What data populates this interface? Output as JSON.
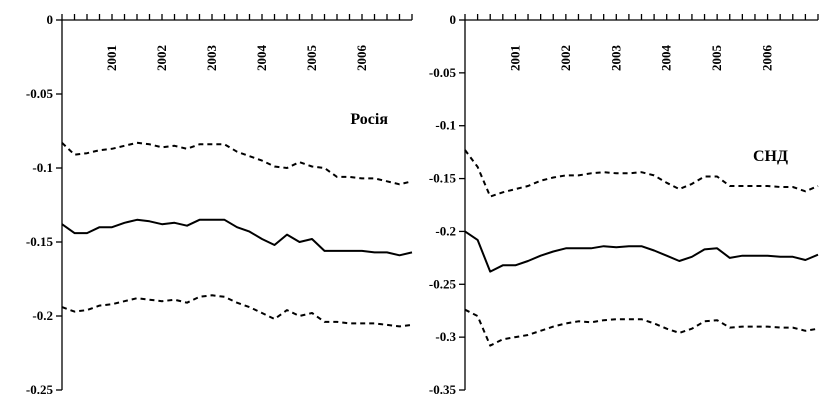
{
  "chart_data": [
    {
      "type": "line",
      "title": "Росія",
      "ylim": [
        -0.25,
        0
      ],
      "yticks": [
        0,
        -0.05,
        -0.1,
        -0.15,
        -0.2,
        -0.25
      ],
      "ytick_labels": [
        "0",
        "-0.05",
        "-0.1",
        "-0.15",
        "-0.2",
        "-0.25"
      ],
      "xlim": [
        2000.0,
        2007.0
      ],
      "year_labels": [
        "2001",
        "2002",
        "2003",
        "2004",
        "2005",
        "2006"
      ],
      "year_positions": [
        2001,
        2002,
        2003,
        2004,
        2005,
        2006
      ],
      "colors": {
        "line": "#000000"
      },
      "series": [
        {
          "style": "dashed",
          "x": [
            2000.0,
            2000.25,
            2000.5,
            2000.75,
            2001.0,
            2001.25,
            2001.5,
            2001.75,
            2002.0,
            2002.25,
            2002.5,
            2002.75,
            2003.0,
            2003.25,
            2003.5,
            2003.75,
            2004.0,
            2004.25,
            2004.5,
            2004.75,
            2005.0,
            2005.25,
            2005.5,
            2005.75,
            2006.0,
            2006.25,
            2006.5,
            2006.75,
            2007.0
          ],
          "y": [
            -0.083,
            -0.091,
            -0.09,
            -0.088,
            -0.087,
            -0.085,
            -0.083,
            -0.084,
            -0.086,
            -0.085,
            -0.087,
            -0.084,
            -0.084,
            -0.084,
            -0.089,
            -0.092,
            -0.095,
            -0.099,
            -0.1,
            -0.096,
            -0.099,
            -0.1,
            -0.106,
            -0.106,
            -0.107,
            -0.107,
            -0.109,
            -0.111,
            -0.109
          ]
        },
        {
          "style": "solid",
          "x": [
            2000.0,
            2000.25,
            2000.5,
            2000.75,
            2001.0,
            2001.25,
            2001.5,
            2001.75,
            2002.0,
            2002.25,
            2002.5,
            2002.75,
            2003.0,
            2003.25,
            2003.5,
            2003.75,
            2004.0,
            2004.25,
            2004.5,
            2004.75,
            2005.0,
            2005.25,
            2005.5,
            2005.75,
            2006.0,
            2006.25,
            2006.5,
            2006.75,
            2007.0
          ],
          "y": [
            -0.138,
            -0.144,
            -0.144,
            -0.14,
            -0.14,
            -0.137,
            -0.135,
            -0.136,
            -0.138,
            -0.137,
            -0.139,
            -0.135,
            -0.135,
            -0.135,
            -0.14,
            -0.143,
            -0.148,
            -0.152,
            -0.145,
            -0.15,
            -0.148,
            -0.156,
            -0.156,
            -0.156,
            -0.156,
            -0.157,
            -0.157,
            -0.159,
            -0.157
          ]
        },
        {
          "style": "dashed",
          "x": [
            2000.0,
            2000.25,
            2000.5,
            2000.75,
            2001.0,
            2001.25,
            2001.5,
            2001.75,
            2002.0,
            2002.25,
            2002.5,
            2002.75,
            2003.0,
            2003.25,
            2003.5,
            2003.75,
            2004.0,
            2004.25,
            2004.5,
            2004.75,
            2005.0,
            2005.25,
            2005.5,
            2005.75,
            2006.0,
            2006.25,
            2006.5,
            2006.75,
            2007.0
          ],
          "y": [
            -0.194,
            -0.197,
            -0.196,
            -0.193,
            -0.192,
            -0.19,
            -0.188,
            -0.189,
            -0.19,
            -0.189,
            -0.191,
            -0.187,
            -0.186,
            -0.187,
            -0.191,
            -0.194,
            -0.198,
            -0.202,
            -0.196,
            -0.2,
            -0.198,
            -0.204,
            -0.204,
            -0.205,
            -0.205,
            -0.205,
            -0.206,
            -0.207,
            -0.206
          ]
        }
      ]
    },
    {
      "type": "line",
      "title": "СНД",
      "ylim": [
        -0.35,
        0
      ],
      "yticks": [
        0,
        -0.05,
        -0.1,
        -0.15,
        -0.2,
        -0.25,
        -0.3,
        -0.35
      ],
      "ytick_labels": [
        "0",
        "-0.05",
        "-0.1",
        "-0.15",
        "-0.2",
        "-0.25",
        "-0.3",
        "-0.35"
      ],
      "xlim": [
        2000.0,
        2007.0
      ],
      "year_labels": [
        "2001",
        "2002",
        "2003",
        "2004",
        "2005",
        "2006"
      ],
      "year_positions": [
        2001,
        2002,
        2003,
        2004,
        2005,
        2006
      ],
      "colors": {
        "line": "#000000"
      },
      "series": [
        {
          "style": "dashed",
          "x": [
            2000.0,
            2000.25,
            2000.5,
            2000.75,
            2001.0,
            2001.25,
            2001.5,
            2001.75,
            2002.0,
            2002.25,
            2002.5,
            2002.75,
            2003.0,
            2003.25,
            2003.5,
            2003.75,
            2004.0,
            2004.25,
            2004.5,
            2004.75,
            2005.0,
            2005.25,
            2005.5,
            2005.75,
            2006.0,
            2006.25,
            2006.5,
            2006.75,
            2007.0
          ],
          "y": [
            -0.123,
            -0.139,
            -0.167,
            -0.163,
            -0.16,
            -0.157,
            -0.152,
            -0.149,
            -0.147,
            -0.147,
            -0.145,
            -0.144,
            -0.145,
            -0.145,
            -0.144,
            -0.147,
            -0.154,
            -0.16,
            -0.155,
            -0.148,
            -0.148,
            -0.157,
            -0.157,
            -0.157,
            -0.157,
            -0.158,
            -0.158,
            -0.162,
            -0.157
          ]
        },
        {
          "style": "solid",
          "x": [
            2000.0,
            2000.25,
            2000.5,
            2000.75,
            2001.0,
            2001.25,
            2001.5,
            2001.75,
            2002.0,
            2002.25,
            2002.5,
            2002.75,
            2003.0,
            2003.25,
            2003.5,
            2003.75,
            2004.0,
            2004.25,
            2004.5,
            2004.75,
            2005.0,
            2005.25,
            2005.5,
            2005.75,
            2006.0,
            2006.25,
            2006.5,
            2006.75,
            2007.0
          ],
          "y": [
            -0.2,
            -0.208,
            -0.238,
            -0.232,
            -0.232,
            -0.228,
            -0.223,
            -0.219,
            -0.216,
            -0.216,
            -0.216,
            -0.214,
            -0.215,
            -0.214,
            -0.214,
            -0.218,
            -0.223,
            -0.228,
            -0.224,
            -0.217,
            -0.216,
            -0.225,
            -0.223,
            -0.223,
            -0.223,
            -0.224,
            -0.224,
            -0.227,
            -0.222
          ]
        },
        {
          "style": "dashed",
          "x": [
            2000.0,
            2000.25,
            2000.5,
            2000.75,
            2001.0,
            2001.25,
            2001.5,
            2001.75,
            2002.0,
            2002.25,
            2002.5,
            2002.75,
            2003.0,
            2003.25,
            2003.5,
            2003.75,
            2004.0,
            2004.25,
            2004.5,
            2004.75,
            2005.0,
            2005.25,
            2005.5,
            2005.75,
            2006.0,
            2006.25,
            2006.5,
            2006.75,
            2007.0
          ],
          "y": [
            -0.274,
            -0.28,
            -0.308,
            -0.302,
            -0.3,
            -0.298,
            -0.294,
            -0.29,
            -0.287,
            -0.285,
            -0.286,
            -0.284,
            -0.283,
            -0.283,
            -0.283,
            -0.287,
            -0.292,
            -0.296,
            -0.292,
            -0.285,
            -0.284,
            -0.291,
            -0.29,
            -0.29,
            -0.29,
            -0.291,
            -0.291,
            -0.294,
            -0.292
          ]
        }
      ]
    }
  ]
}
